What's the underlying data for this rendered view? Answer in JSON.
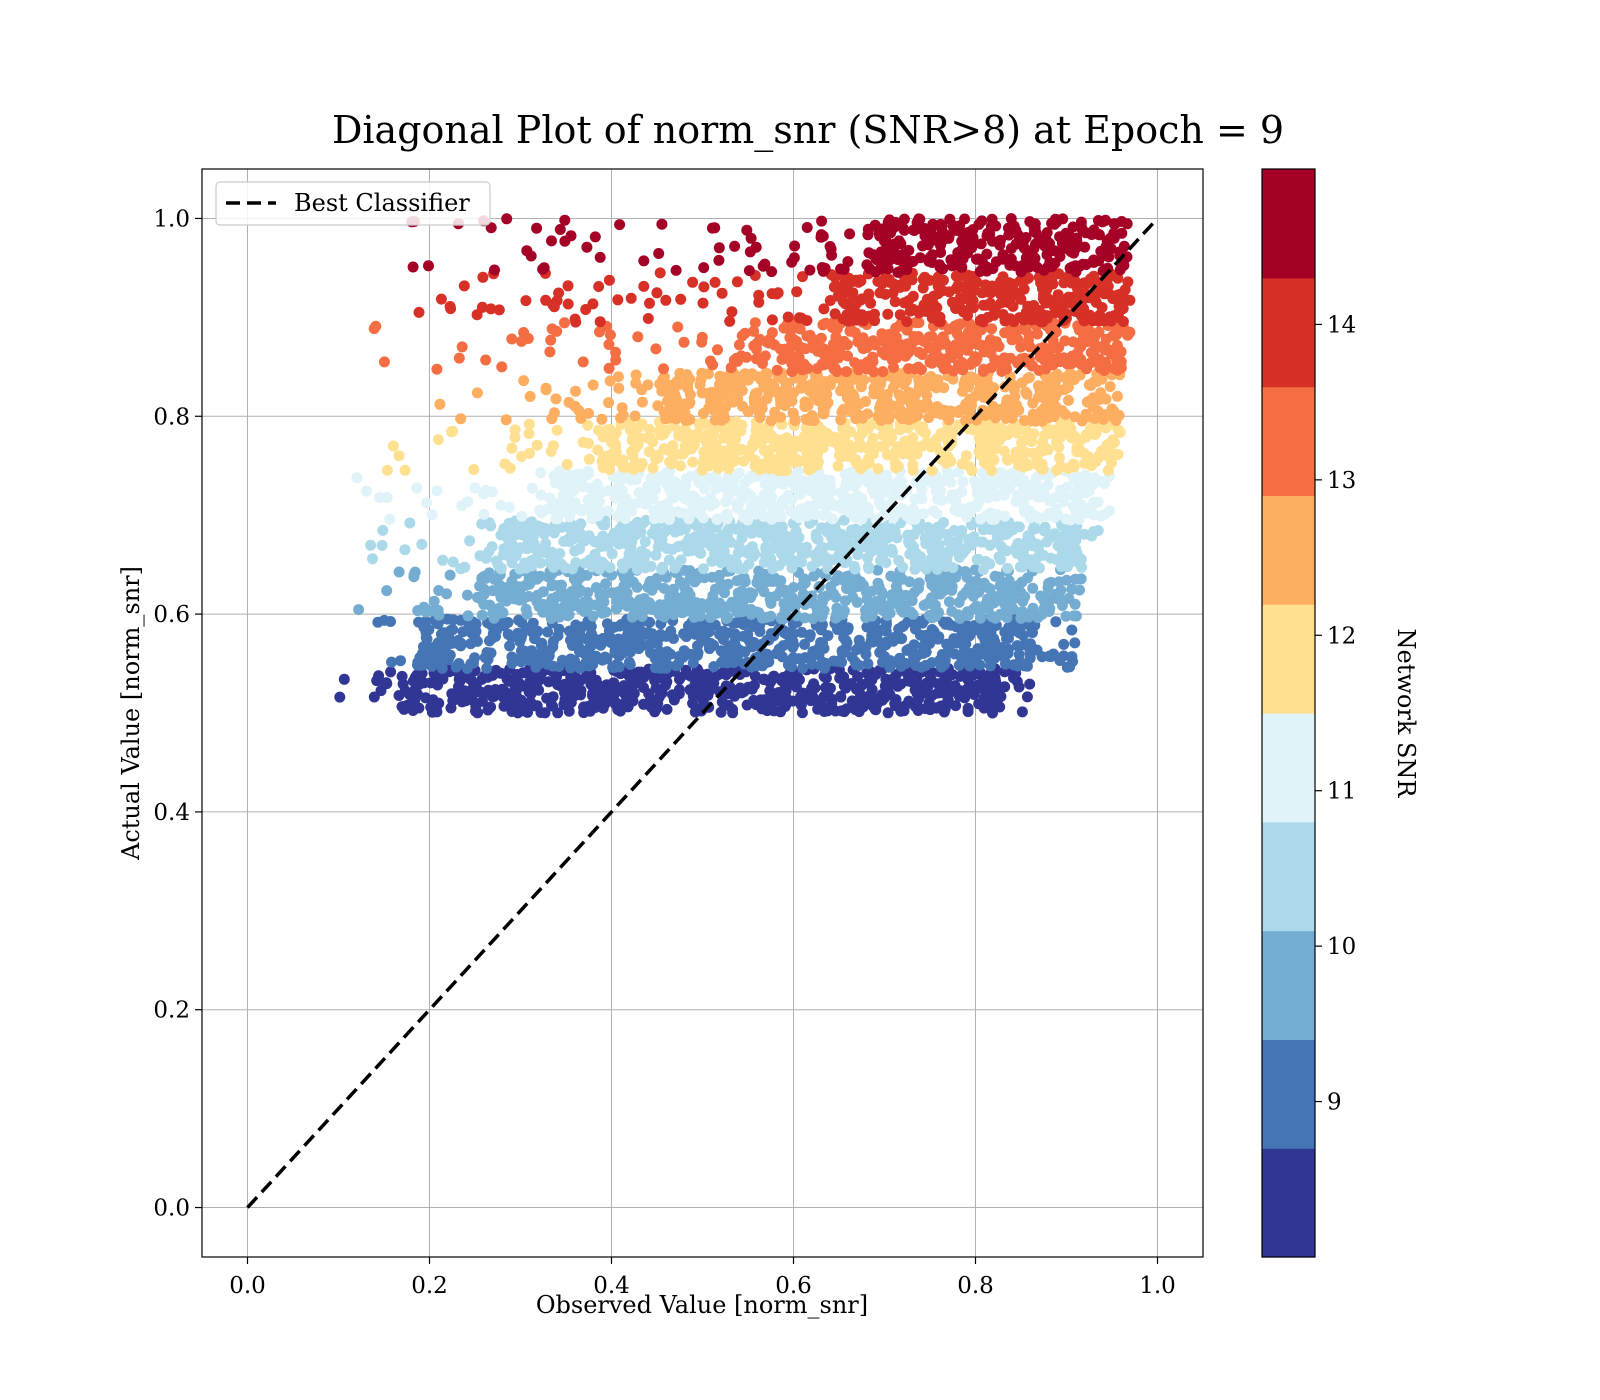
{
  "chart_data": {
    "type": "scatter",
    "title": "Diagonal Plot of norm_snr (SNR>8) at Epoch = 9",
    "xlabel": "Observed Value [norm_snr]",
    "ylabel": "Actual Value [norm_snr]",
    "xlim": [
      -0.05,
      1.05
    ],
    "ylim": [
      -0.05,
      1.05
    ],
    "xticks": [
      0.0,
      0.2,
      0.4,
      0.6,
      0.8,
      1.0
    ],
    "xtick_labels": [
      "0.0",
      "0.2",
      "0.4",
      "0.6",
      "0.8",
      "1.0"
    ],
    "yticks": [
      0.0,
      0.2,
      0.4,
      0.6,
      0.8,
      1.0
    ],
    "ytick_labels": [
      "0.0",
      "0.2",
      "0.4",
      "0.6",
      "0.8",
      "1.0"
    ],
    "grid": true,
    "legend": {
      "placement": "upper-left",
      "entries": [
        {
          "label": "Best Classifier",
          "style": "dashed",
          "color": "#000000"
        }
      ]
    },
    "reference_line": {
      "name": "Best Classifier",
      "x": [
        0.0,
        1.0
      ],
      "y": [
        0.0,
        1.0
      ],
      "style": "dashed",
      "color": "#000000"
    },
    "colorbar": {
      "label": "Network SNR",
      "range": [
        8,
        15
      ],
      "ticks": [
        9,
        10,
        11,
        12,
        13,
        14
      ],
      "tick_labels": [
        "9",
        "10",
        "11",
        "12",
        "13",
        "14"
      ],
      "bins": [
        8.0,
        8.7,
        9.4,
        10.1,
        10.8,
        11.5,
        12.2,
        12.9,
        13.6,
        14.3,
        15.0
      ],
      "colors": [
        "#313695",
        "#4575b4",
        "#74add1",
        "#abd9e9",
        "#e0f3f8",
        "#fee090",
        "#fdae61",
        "#f46d43",
        "#d73027",
        "#a50026"
      ]
    },
    "point_bands": [
      {
        "snr_bin": "8.0-8.7",
        "color": "#313695",
        "y_range": [
          0.5,
          0.545
        ],
        "dense_x": [
          0.17,
          0.82
        ],
        "sparse_x": [
          0.09,
          0.87
        ]
      },
      {
        "snr_bin": "8.7-9.4",
        "color": "#4575b4",
        "y_range": [
          0.545,
          0.595
        ],
        "dense_x": [
          0.19,
          0.86
        ],
        "sparse_x": [
          0.12,
          0.91
        ]
      },
      {
        "snr_bin": "9.4-10.1",
        "color": "#74add1",
        "y_range": [
          0.595,
          0.645
        ],
        "dense_x": [
          0.26,
          0.89
        ],
        "sparse_x": [
          0.09,
          0.92
        ]
      },
      {
        "snr_bin": "10.1-10.8",
        "color": "#abd9e9",
        "y_range": [
          0.645,
          0.695
        ],
        "dense_x": [
          0.28,
          0.91
        ],
        "sparse_x": [
          0.13,
          0.94
        ]
      },
      {
        "snr_bin": "10.8-11.5",
        "color": "#e0f3f8",
        "y_range": [
          0.695,
          0.745
        ],
        "dense_x": [
          0.34,
          0.93
        ],
        "sparse_x": [
          0.12,
          0.95
        ]
      },
      {
        "snr_bin": "11.5-12.2",
        "color": "#fee090",
        "y_range": [
          0.745,
          0.795
        ],
        "dense_x": [
          0.4,
          0.95
        ],
        "sparse_x": [
          0.14,
          0.96
        ]
      },
      {
        "snr_bin": "12.2-12.9",
        "color": "#fdae61",
        "y_range": [
          0.795,
          0.845
        ],
        "dense_x": [
          0.46,
          0.95
        ],
        "sparse_x": [
          0.2,
          0.96
        ]
      },
      {
        "snr_bin": "12.9-13.6",
        "color": "#f46d43",
        "y_range": [
          0.845,
          0.895
        ],
        "dense_x": [
          0.6,
          0.96
        ],
        "sparse_x": [
          0.13,
          0.97
        ]
      },
      {
        "snr_bin": "13.6-14.3",
        "color": "#d73027",
        "y_range": [
          0.895,
          0.945
        ],
        "dense_x": [
          0.66,
          0.96
        ],
        "sparse_x": [
          0.18,
          0.97
        ]
      },
      {
        "snr_bin": "14.3-15.0",
        "color": "#a50026",
        "y_range": [
          0.945,
          1.0
        ],
        "dense_x": [
          0.7,
          0.96
        ],
        "sparse_x": [
          0.18,
          0.97
        ]
      }
    ]
  }
}
